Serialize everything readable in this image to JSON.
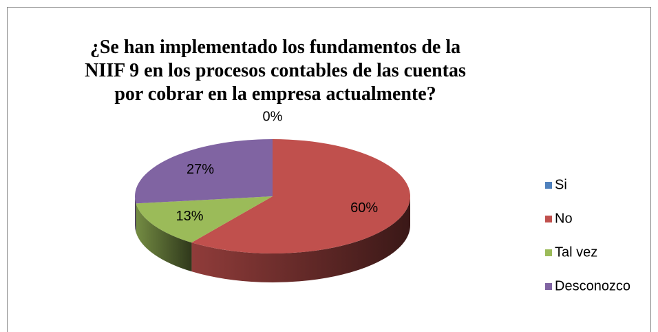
{
  "chart_data": {
    "type": "pie3d",
    "title": "¿Se han implementado los fundamentos de la NIIF 9 en los procesos contables de las cuentas por cobrar en la empresa actualmente?",
    "categories": [
      "Si",
      "No",
      "Tal vez",
      "Desconozco"
    ],
    "values": [
      0,
      60,
      13,
      27
    ],
    "value_labels": [
      "0%",
      "60%",
      "13%",
      "27%"
    ],
    "colors": [
      "#4f81bd",
      "#c0504d",
      "#9bbb59",
      "#8064a2"
    ],
    "legend": "right"
  }
}
